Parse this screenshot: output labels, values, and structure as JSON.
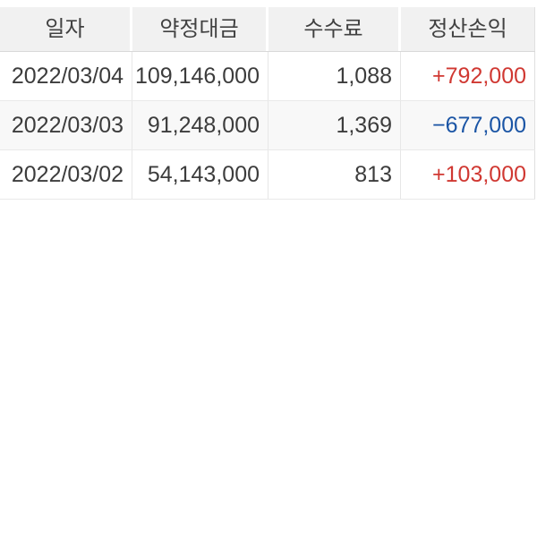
{
  "table": {
    "name": "daily-settlement-pnl-table",
    "columns": [
      {
        "key": "date",
        "label": "일자"
      },
      {
        "key": "amount",
        "label": "약정대금"
      },
      {
        "key": "fee",
        "label": "수수료"
      },
      {
        "key": "pnl",
        "label": "정산손익"
      }
    ],
    "rows": [
      {
        "date": "2022/03/04",
        "amount": "109,146,000",
        "fee": "1,088",
        "pnl": "+792,000",
        "pnl_direction": "profit"
      },
      {
        "date": "2022/03/03",
        "amount": "91,248,000",
        "fee": "1,369",
        "pnl": "−677,000",
        "pnl_direction": "loss"
      },
      {
        "date": "2022/03/02",
        "amount": "54,143,000",
        "fee": "813",
        "pnl": "+103,000",
        "pnl_direction": "profit"
      }
    ],
    "colors": {
      "profit": "#d03832",
      "loss": "#1b55a5",
      "header_bg": "#f1f1f1",
      "row_alt_bg": "#f8f8f8",
      "text": "#3c3c3c",
      "divider": "#e7e7e7"
    }
  }
}
